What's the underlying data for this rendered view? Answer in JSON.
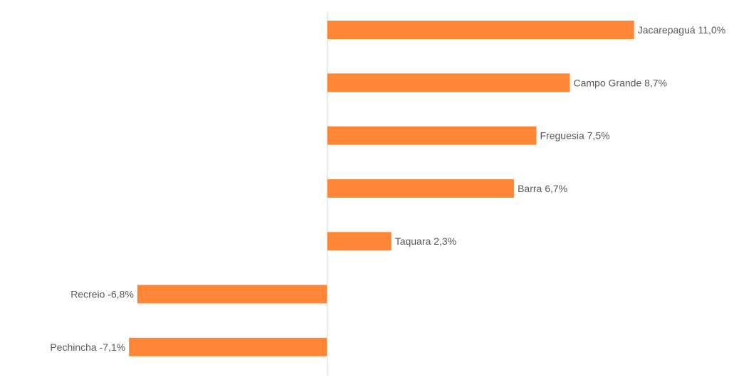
{
  "chart_data": {
    "type": "bar",
    "orientation": "horizontal",
    "categories": [
      "Jacarepaguá",
      "Campo Grande",
      "Freguesia",
      "Barra",
      "Taquara",
      "Recreio",
      "Pechincha"
    ],
    "values": [
      11.0,
      8.7,
      7.5,
      6.7,
      2.3,
      -6.8,
      -7.1
    ],
    "data_labels": [
      "Jacarepaguá 11,0%",
      "Campo Grande 8,7%",
      "Freguesia 7,5%",
      "Barra 6,7%",
      "Taquara 2,3%",
      "Recreio -6,8%",
      "Pechincha -7,1%"
    ],
    "unit": "%",
    "title": "",
    "xlabel": "",
    "ylabel": "",
    "xlim": [
      -11.8,
      14.4
    ],
    "grid": false,
    "legend": "none",
    "colors": {
      "bar": "#FF8636",
      "axis": "#D9D9D9",
      "label": "#595959"
    }
  }
}
